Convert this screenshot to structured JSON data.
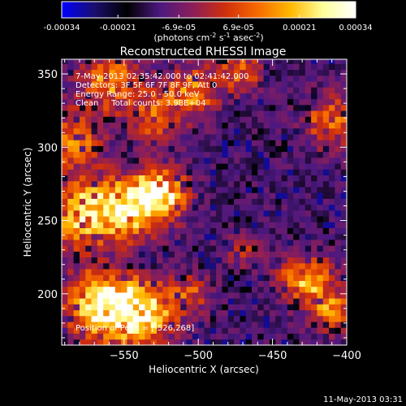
{
  "chart_data": {
    "type": "heatmap",
    "title": "Reconstructed RHESSI Image",
    "xlabel": "Heliocentric X (arcsec)",
    "ylabel": "Heliocentric Y (arcsec)",
    "xlim": [
      -592,
      -400
    ],
    "ylim": [
      165,
      360
    ],
    "x_ticks": [
      -550,
      -500,
      -450,
      -400
    ],
    "y_ticks": [
      200,
      250,
      300,
      350
    ],
    "colorbar": {
      "min": -0.00034,
      "max": 0.00034,
      "tick_values": [
        -0.00034,
        -0.00021,
        -6.9e-05,
        6.9e-05,
        0.00021,
        0.00034
      ],
      "tick_labels": [
        "-0.00034",
        "-0.00021",
        "-6.9e-05",
        "6.9e-05",
        "0.00021",
        "0.00034"
      ],
      "unit_parts": [
        "(photons cm",
        "-2",
        " s",
        "-1",
        " asec",
        "-2",
        ")"
      ],
      "stops": [
        "#0000ff",
        "#1a0f6e",
        "#000000",
        "#4b1880",
        "#8a1e5a",
        "#d02e0c",
        "#f56a00",
        "#ffb800",
        "#ffff9a",
        "#ffffff"
      ]
    },
    "annotations": [
      "7-May-2013 02:35:42.000 to 02:41:42.000",
      "Detectors: 3F 5F 6F 7F 8F 9F, Att 0",
      "Energy Range: 25.0 - 50.0 keV",
      "Clean     Total counts: 3.98E+04",
      "Position of Peak = [-526,268]"
    ],
    "peak_position": [
      -526,
      268
    ],
    "sources": [
      {
        "x": -565,
        "y": 192,
        "amp": 1.0,
        "r": 16
      },
      {
        "x": -537,
        "y": 187,
        "amp": 0.95,
        "r": 14
      },
      {
        "x": -526,
        "y": 268,
        "amp": 1.0,
        "r": 12
      },
      {
        "x": -548,
        "y": 258,
        "amp": 0.8,
        "r": 14
      },
      {
        "x": -578,
        "y": 255,
        "amp": 0.75,
        "r": 16
      },
      {
        "x": -585,
        "y": 305,
        "amp": 0.55,
        "r": 14
      },
      {
        "x": -560,
        "y": 345,
        "amp": 0.6,
        "r": 14
      },
      {
        "x": -530,
        "y": 320,
        "amp": 0.45,
        "r": 12
      },
      {
        "x": -505,
        "y": 338,
        "amp": 0.6,
        "r": 12
      },
      {
        "x": -472,
        "y": 352,
        "amp": 0.5,
        "r": 10
      },
      {
        "x": -412,
        "y": 318,
        "amp": 0.55,
        "r": 12
      },
      {
        "x": -428,
        "y": 210,
        "amp": 0.75,
        "r": 12
      },
      {
        "x": -410,
        "y": 188,
        "amp": 0.55,
        "r": 10
      },
      {
        "x": -505,
        "y": 200,
        "amp": 0.4,
        "r": 10
      },
      {
        "x": -470,
        "y": 230,
        "amp": 0.3,
        "r": 8
      }
    ]
  },
  "timestamp": "11-May-2013 03:31"
}
